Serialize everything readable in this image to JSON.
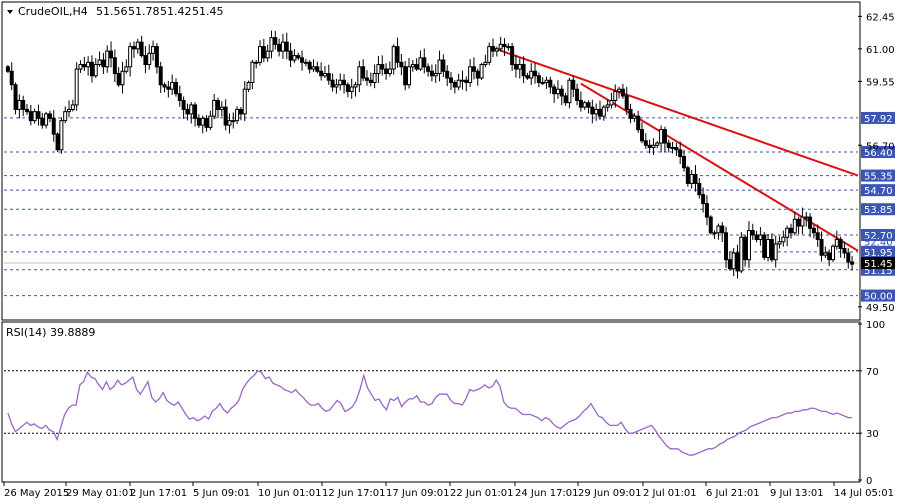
{
  "chart_data": [
    {
      "type": "candlestick",
      "title": "CrudeOIL,H4",
      "ohlc_label": {
        "symbol_tf": "CrudeOIL,H4",
        "open": "51.56",
        "high": "51.78",
        "low": "51.42",
        "close": "51.45"
      },
      "ylim": [
        49.0,
        63.0
      ],
      "y_ticks": [
        "62.45",
        "61.00",
        "59.55",
        "56.70",
        "49.50"
      ],
      "x_ticks": [
        "26 May 2015",
        "29 May 01:01",
        "2 Jun 17:01",
        "5 Jun 09:01",
        "10 Jun 01:01",
        "12 Jun 17:01",
        "17 Jun 09:01",
        "22 Jun 01:01",
        "24 Jun 17:01",
        "29 Jun 09:01",
        "2 Jul 01:01",
        "6 Jul 21:01",
        "9 Jul 13:01",
        "14 Jul 05:01"
      ],
      "levels": [
        {
          "value": 57.92,
          "label": "57.92"
        },
        {
          "value": 56.4,
          "label": "56.40"
        },
        {
          "value": 55.35,
          "label": "55.35"
        },
        {
          "value": 54.7,
          "label": "54.70"
        },
        {
          "value": 53.85,
          "label": "53.85"
        },
        {
          "value": 52.7,
          "label": "52.70"
        },
        {
          "value": 51.95,
          "label": "51.95"
        },
        {
          "value": 51.15,
          "label": "51.15"
        },
        {
          "value": 50.0,
          "label": "50.00"
        }
      ],
      "current_price": {
        "value": 51.45,
        "label": "51.45"
      },
      "partial_labels": [
        "52.40"
      ],
      "trendlines": [
        {
          "from": [
            126,
            61.1
          ],
          "to": [
            214,
            55.35
          ],
          "color": "#dd1111"
        },
        {
          "from": [
            150,
            59.45
          ],
          "to": [
            214,
            52.0
          ],
          "color": "#dd1111"
        }
      ],
      "close_series": [
        60.0,
        59.4,
        58.3,
        58.7,
        58.3,
        58.2,
        57.8,
        58.2,
        57.9,
        57.6,
        58.1,
        57.9,
        57.2,
        56.5,
        57.8,
        58.2,
        58.3,
        58.5,
        60.1,
        60.3,
        60.2,
        60.4,
        59.8,
        60.3,
        60.5,
        60.2,
        60.9,
        60.6,
        59.9,
        59.4,
        60.0,
        60.2,
        61.1,
        61.0,
        61.3,
        60.7,
        60.3,
        60.8,
        61.1,
        60.2,
        59.4,
        59.3,
        59.2,
        59.5,
        59.0,
        58.7,
        58.3,
        58.1,
        58.5,
        57.9,
        57.6,
        57.9,
        57.5,
        58.0,
        58.7,
        58.3,
        58.4,
        57.6,
        57.8,
        57.8,
        58.3,
        58.1,
        59.2,
        59.5,
        60.4,
        60.4,
        61.1,
        60.6,
        60.9,
        61.5,
        61.2,
        60.9,
        61.3,
        60.9,
        60.5,
        60.7,
        60.6,
        60.4,
        60.4,
        60.1,
        60.2,
        60.0,
        59.8,
        59.9,
        59.6,
        59.3,
        59.4,
        59.6,
        59.4,
        59.1,
        59.3,
        59.4,
        60.2,
        59.7,
        59.6,
        59.5,
        59.9,
        60.3,
        60.1,
        59.9,
        60.1,
        61.1,
        60.4,
        60.2,
        59.4,
        60.2,
        60.3,
        60.1,
        60.6,
        60.2,
        60.0,
        59.8,
        59.9,
        60.5,
        60.0,
        59.7,
        59.5,
        59.3,
        59.6,
        59.6,
        59.5,
        60.2,
        60.0,
        59.7,
        60.3,
        60.4,
        61.1,
        60.9,
        61.0,
        61.2,
        61.1,
        61.1,
        60.3,
        60.1,
        60.3,
        59.8,
        59.7,
        60.0,
        59.8,
        59.5,
        59.5,
        59.6,
        59.3,
        59.0,
        59.2,
        58.9,
        58.6,
        59.6,
        59.2,
        58.7,
        58.4,
        58.6,
        58.4,
        58.1,
        58.3,
        58.0,
        58.4,
        58.5,
        58.7,
        59.1,
        59.2,
        58.9,
        58.3,
        57.9,
        58.0,
        57.4,
        56.9,
        56.7,
        56.6,
        56.7,
        56.8,
        57.4,
        56.8,
        56.6,
        56.6,
        56.5,
        56.2,
        55.7,
        55.0,
        55.4,
        55.0,
        54.5,
        54.1,
        53.5,
        52.8,
        52.8,
        53.1,
        52.8,
        51.6,
        51.2,
        51.9,
        51.1,
        52.6,
        51.6,
        52.9,
        52.7,
        52.5,
        52.7,
        51.7,
        52.5,
        51.6,
        52.3,
        52.4,
        52.6,
        53.0,
        52.8,
        53.4,
        53.1,
        53.5,
        53.5,
        53.0,
        52.8,
        52.5,
        51.8,
        51.9,
        51.6,
        52.2,
        52.5,
        52.1,
        51.9,
        51.5,
        51.4
      ],
      "indicator": {
        "name": "RSI(14) 39.8889",
        "ylim": [
          0,
          100
        ],
        "y_ticks": [
          "100",
          "70",
          "30",
          "0"
        ],
        "levels": [
          70,
          30
        ],
        "color": "#9966cc",
        "values": [
          43.0,
          36.0,
          31.0,
          33.0,
          35.0,
          37.0,
          35.0,
          36.0,
          34.0,
          33.0,
          35.0,
          32.0,
          31.0,
          26.0,
          34.0,
          42.0,
          46.0,
          48.0,
          48.0,
          61.0,
          63.0,
          69.0,
          66.0,
          65.0,
          61.0,
          58.0,
          63.0,
          58.0,
          60.0,
          64.0,
          61.0,
          62.0,
          64.0,
          66.0,
          58.0,
          55.0,
          59.0,
          63.0,
          53.0,
          50.0,
          52.0,
          56.0,
          51.0,
          49.0,
          48.0,
          50.0,
          46.0,
          42.0,
          39.0,
          40.0,
          38.0,
          39.0,
          41.0,
          39.0,
          44.0,
          46.0,
          49.0,
          45.0,
          43.0,
          46.0,
          48.0,
          51.0,
          58.0,
          62.0,
          65.0,
          67.0,
          70.0,
          69.0,
          65.0,
          66.0,
          62.0,
          61.0,
          60.0,
          58.0,
          57.0,
          56.0,
          58.0,
          55.0,
          53.0,
          50.0,
          48.0,
          48.0,
          49.0,
          46.0,
          44.0,
          45.0,
          48.0,
          51.0,
          49.0,
          44.0,
          45.0,
          47.0,
          51.0,
          58.0,
          67.0,
          59.0,
          55.0,
          51.0,
          52.0,
          48.0,
          45.0,
          52.0,
          51.0,
          53.0,
          47.0,
          50.0,
          52.0,
          52.0,
          54.0,
          50.0,
          50.0,
          48.0,
          49.0,
          53.0,
          55.0,
          55.0,
          55.0,
          51.0,
          49.0,
          49.0,
          48.0,
          52.0,
          58.0,
          57.0,
          58.0,
          59.0,
          61.0,
          59.0,
          60.0,
          64.0,
          60.0,
          50.0,
          47.0,
          46.0,
          46.0,
          44.0,
          42.0,
          42.0,
          42.0,
          41.0,
          40.0,
          38.0,
          40.0,
          39.0,
          36.0,
          34.0,
          33.0,
          35.0,
          37.0,
          38.0,
          39.0,
          41.0,
          44.0,
          46.0,
          49.0,
          45.0,
          41.0,
          40.0,
          37.0,
          35.0,
          35.0,
          35.0,
          37.0,
          33.0,
          30.0,
          30.0,
          31.0,
          32.0,
          33.0,
          34.0,
          35.0,
          32.0,
          28.0,
          25.0,
          22.0,
          20.0,
          20.0,
          20.0,
          18.0,
          17.0,
          16.0,
          16.0,
          17.0,
          18.0,
          19.0,
          20.0,
          20.0,
          21.0,
          23.0,
          24.0,
          26.0,
          27.0,
          28.0,
          30.0,
          31.0,
          32.0,
          34.0,
          35.0,
          36.0,
          37.0,
          38.0,
          39.0,
          40.0,
          40.0,
          41.0,
          42.0,
          43.0,
          43.0,
          44.0,
          44.0,
          45.0,
          45.0,
          46.0,
          46.0,
          45.0,
          44.0,
          44.0,
          43.0,
          42.0,
          43.0,
          42.0,
          41.0,
          40.0,
          40.0
        ]
      }
    }
  ]
}
